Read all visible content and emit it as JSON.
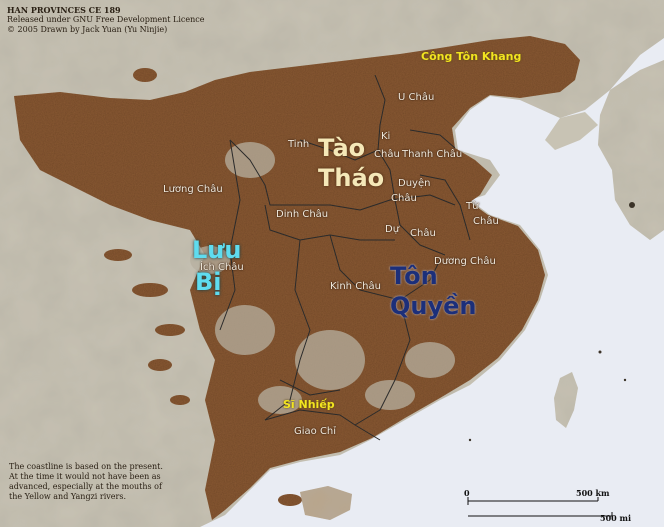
{
  "header": {
    "title": "HAN PROVINCES CE 189",
    "line2": "Released under GNU Free Development Licence",
    "line3": "© 2005 Drawn by Jack Yuan (Yu Ninjie)"
  },
  "warlords": {
    "cao_cao_1": "Tào",
    "cao_cao_2": "Tháo",
    "liu_bei_1": "Lưu",
    "liu_bei_2": "Bị",
    "sun_quan_1": "Tôn",
    "sun_quan_2": "Quyền",
    "gongsun_kang": "Công Tôn Khang",
    "shi_xie": "Sĩ Nhiếp"
  },
  "provinces": {
    "u_chau": "U Châu",
    "ki_1": "Ki",
    "ki_2": "Châu",
    "tinh": "Tinh",
    "thanh_chau": "Thanh Châu",
    "duyen_1": "Duyện",
    "duyen_2": "Châu",
    "tu_1": "Từ",
    "tu_2": "Châu",
    "luong_chau": "Lương Châu",
    "dinh_chau": "Dinh Châu",
    "du_1": "Dự",
    "du_2": "Châu",
    "ich_chau": "Ích Châu",
    "duong_chau": "Dương Châu",
    "kinh_chau": "Kinh Châu",
    "giao_chi": "Giao Chỉ"
  },
  "note": "The coastline is based on the present. At the time it would not have been as advanced, especially at the mouths of the Yellow and Yangzi rivers.",
  "scale": {
    "zero": "0",
    "km": "500 km",
    "mi": "500 mi"
  },
  "colors": {
    "han_territory": "#8a5a36",
    "terrain": "#c9c4b6",
    "sea": "#e9ecf3",
    "cao_cao": "#f5e8b8",
    "liu_bei": "#5fdcef",
    "sun_quan": "#1c2f7a",
    "minor_warlords": "#f2e420"
  }
}
